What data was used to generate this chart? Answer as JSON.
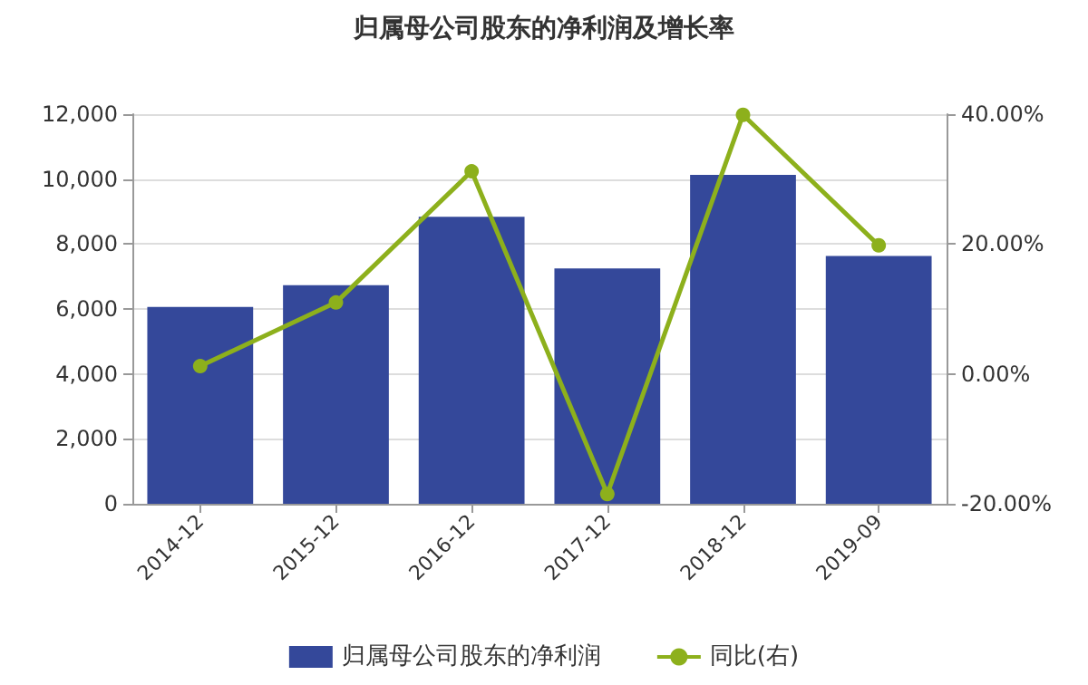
{
  "chart_data": {
    "type": "bar",
    "title": "归属母公司股东的净利润及增长率",
    "categories": [
      "2014-12",
      "2015-12",
      "2016-12",
      "2017-12",
      "2018-12",
      "2019-09"
    ],
    "series": [
      {
        "name": "归属母公司股东的净利润",
        "color": "#34489a",
        "values": [
          6060,
          6730,
          8840,
          7250,
          10130,
          7630
        ]
      },
      {
        "name": "同比(右)",
        "type": "line",
        "axis": "y2",
        "color": "#8db01c",
        "values": [
          1.2,
          11.0,
          31.2,
          -18.5,
          39.9,
          19.8
        ]
      }
    ],
    "ylim": [
      0,
      12000
    ],
    "yticks": [
      {
        "value": 0,
        "label": "0"
      },
      {
        "value": 2000,
        "label": "2,000"
      },
      {
        "value": 4000,
        "label": "4,000"
      },
      {
        "value": 6000,
        "label": "6,000"
      },
      {
        "value": 8000,
        "label": "8,000"
      },
      {
        "value": 10000,
        "label": "10,000"
      },
      {
        "value": 12000,
        "label": "12,000"
      }
    ],
    "y2lim": [
      -20,
      40
    ],
    "y2ticks": [
      {
        "value": -20,
        "label": "-20.00%"
      },
      {
        "value": 0,
        "label": "0.00%"
      },
      {
        "value": 20,
        "label": "20.00%"
      },
      {
        "value": 40,
        "label": "40.00%"
      }
    ],
    "grid": "y",
    "legend": "bottom",
    "marker": "circle"
  }
}
